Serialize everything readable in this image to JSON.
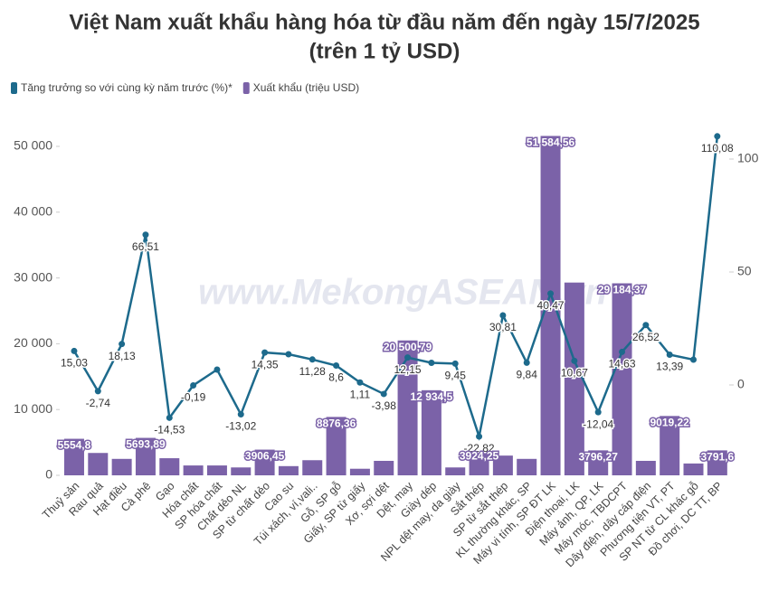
{
  "chart_data": {
    "type": "bar-line",
    "title": "Việt Nam xuất khẩu hàng hóa từ đầu năm đến ngày 15/7/2025",
    "subtitle": "(trên 1 tỷ USD)",
    "watermark": "www.MekongASEAN.vn",
    "legend_position": "top-left",
    "categories": [
      "Thuỷ sản",
      "Rau quả",
      "Hạt điều",
      "Cà phê",
      "Gạo",
      "Hóa chất",
      "SP hóa chất",
      "Chất dẻo NL",
      "SP từ chất dẻo",
      "Cao su",
      "Túi xách, ví,vali..",
      "Gỗ, SP gỗ",
      "Giấy, SP từ giấy",
      "Xơ, sợi dệt",
      "Dệt, may",
      "Giày dép",
      "NPL dệt may, da giày",
      "Sắt thép",
      "SP từ sắt thép",
      "KL thường khác, SP",
      "Máy vi tính, SP ĐT LK",
      "Điện thoại, LK",
      "Máy ảnh, QP, LK",
      "Máy móc, TBDCPT",
      "Dây điện, dây cáp điện",
      "Phương tiện VT, PT",
      "SP NT từ CL khác gỗ",
      "Đồ chơi, DC TT, BP"
    ],
    "series": [
      {
        "name": "Tăng trưởng so với cùng kỳ năm trước (%)*",
        "type": "line",
        "axis": "y2",
        "color": "#1d6a8c",
        "values": [
          15.03,
          -2.74,
          18.13,
          66.51,
          -14.53,
          -0.19,
          6.8,
          -13.02,
          14.35,
          13.6,
          11.28,
          8.6,
          1.11,
          -3.98,
          12.15,
          9.8,
          9.45,
          -22.82,
          30.81,
          9.84,
          40.47,
          10.67,
          -12.04,
          14.63,
          26.52,
          13.39,
          11.2,
          110.08
        ],
        "value_labels": [
          "15,03",
          "-2,74",
          "18,13",
          "66,51",
          "-14,53",
          "-0,19",
          null,
          "-13,02",
          "14,35",
          null,
          "11,28",
          "8,6",
          "1,11",
          "-3,98",
          "12,15",
          null,
          "9,45",
          "-22,82",
          "30,81",
          "9,84",
          "40,47",
          "10,67",
          "-12,04",
          "14,63",
          "26,52",
          "13,39",
          null,
          "110,08"
        ]
      },
      {
        "name": "Xuất khẩu (triệu USD)",
        "type": "bar",
        "axis": "y",
        "color": "#7b62a8",
        "values": [
          5554.8,
          3400,
          2500,
          5693.89,
          2600,
          1500,
          1500,
          1200,
          3906.45,
          1400,
          2300,
          8876.36,
          1000,
          2200,
          20500.79,
          12934.5,
          1200,
          3924.25,
          3000,
          2500,
          51584.56,
          29300,
          3796.27,
          29184.37,
          2200,
          9019.22,
          1800,
          3791.6
        ],
        "value_labels": [
          "5554,8",
          null,
          null,
          "5693,89",
          null,
          null,
          null,
          null,
          "3906,45",
          null,
          null,
          "8876,36",
          null,
          null,
          "20 500,79",
          "12 934,5",
          null,
          "3924,25",
          null,
          null,
          "51 584,56",
          null,
          "3796,27",
          "29 184,37",
          null,
          "9019,22",
          null,
          "3791,6"
        ]
      }
    ],
    "ylim": [
      0,
      52330
    ],
    "yticks": [
      0,
      {
        "value": 10000,
        "label": "10 000"
      },
      {
        "value": 20000,
        "label": "20 000"
      },
      {
        "value": 30000,
        "label": "30 000"
      },
      {
        "value": 40000,
        "label": "40 000"
      },
      {
        "value": 50000,
        "label": "50 000"
      }
    ],
    "y2lim": [
      -40,
      112.4
    ],
    "y2ticks": [
      0,
      50,
      100
    ]
  }
}
